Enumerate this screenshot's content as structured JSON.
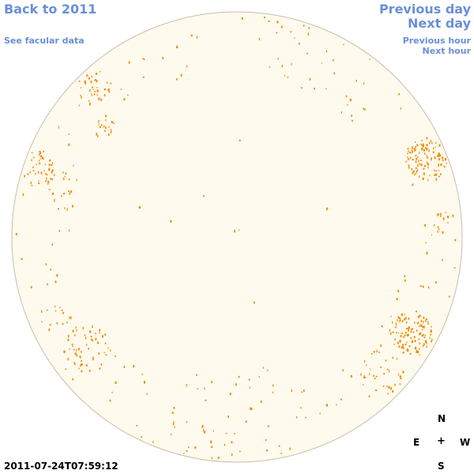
{
  "nav": {
    "back_label": "Back to 2011",
    "facular_label": "See facular data",
    "previous_day_label": "Previous day",
    "next_day_label": "Next day",
    "previous_hour_label": "Previous hour",
    "next_hour_label": "Next hour"
  },
  "compass": {
    "north": "N",
    "east": "E",
    "center": "+",
    "west": "W",
    "south": "S"
  },
  "timestamp": "2011-07-24T07:59:12",
  "colors": {
    "link": "#6a8fd8",
    "disk_fill": "#fffaee",
    "disk_outline": "#c8bfa8",
    "facula": "#f08c00"
  }
}
